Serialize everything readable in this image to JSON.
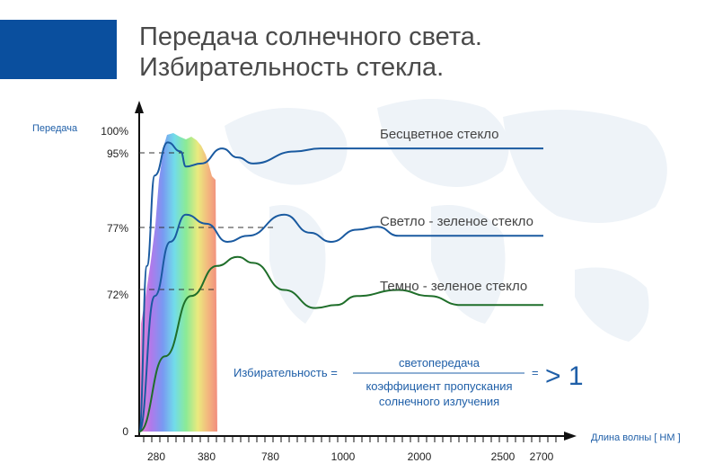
{
  "header": {
    "title_line1": "Передача солнечного света.",
    "title_line2": "Избирательность стекла.",
    "accent_color": "#0a4f9e"
  },
  "chart_data": {
    "type": "line",
    "ylabel": "Передача",
    "xlabel": "Длина волны [ НМ ]",
    "x_ticks": [
      "280",
      "380",
      "780",
      "1000",
      "2000",
      "2500",
      "2700"
    ],
    "y_ticks": [
      "0",
      "72%",
      "77%",
      "95%",
      "100%"
    ],
    "ylim": [
      0,
      100
    ],
    "grid": false,
    "series": [
      {
        "name": "Бесцветное стекло",
        "color": "#1a5aa0",
        "points": [
          [
            0,
            0
          ],
          [
            0.15,
            55
          ],
          [
            0.3,
            85
          ],
          [
            0.55,
            96
          ],
          [
            0.8,
            93
          ],
          [
            0.9,
            88
          ],
          [
            1.2,
            89
          ],
          [
            1.6,
            94
          ],
          [
            1.9,
            91
          ],
          [
            2.2,
            89
          ],
          [
            3.0,
            93
          ],
          [
            3.5,
            94
          ],
          [
            4.0,
            94
          ],
          [
            5,
            94
          ],
          [
            6,
            94
          ],
          [
            7,
            94
          ],
          [
            7.8,
            94
          ]
        ]
      },
      {
        "name": "Светло - зеленое стекло",
        "color": "#1a5aa0",
        "points": [
          [
            0,
            0
          ],
          [
            0.3,
            45
          ],
          [
            0.6,
            63
          ],
          [
            0.9,
            72
          ],
          [
            1.3,
            69
          ],
          [
            1.7,
            63
          ],
          [
            2.1,
            65
          ],
          [
            2.8,
            72
          ],
          [
            3.3,
            66
          ],
          [
            3.7,
            63
          ],
          [
            4.2,
            67
          ],
          [
            4.6,
            68
          ],
          [
            5,
            65
          ],
          [
            6,
            65
          ],
          [
            7,
            65
          ],
          [
            7.8,
            65
          ]
        ]
      },
      {
        "name": "Темно - зеленое стекло",
        "color": "#1f6e2a",
        "points": [
          [
            0,
            0
          ],
          [
            0.5,
            25
          ],
          [
            1.0,
            45
          ],
          [
            1.5,
            55
          ],
          [
            1.9,
            58
          ],
          [
            2.2,
            56
          ],
          [
            2.8,
            47
          ],
          [
            3.4,
            41
          ],
          [
            3.8,
            42
          ],
          [
            4.2,
            45
          ],
          [
            5.0,
            47
          ],
          [
            5.6,
            45
          ],
          [
            6.2,
            42
          ],
          [
            6.8,
            42
          ],
          [
            7.3,
            42
          ],
          [
            7.8,
            42
          ]
        ]
      }
    ],
    "dashed_levels": [
      "95%",
      "77%",
      "72%"
    ]
  },
  "formula": {
    "lhs": "Избирательность =",
    "numerator": "светопередача",
    "denominator_line1": "коэффициент пропускания",
    "denominator_line2": "солнечного излучения",
    "equals": "=",
    "result": "> 1"
  }
}
